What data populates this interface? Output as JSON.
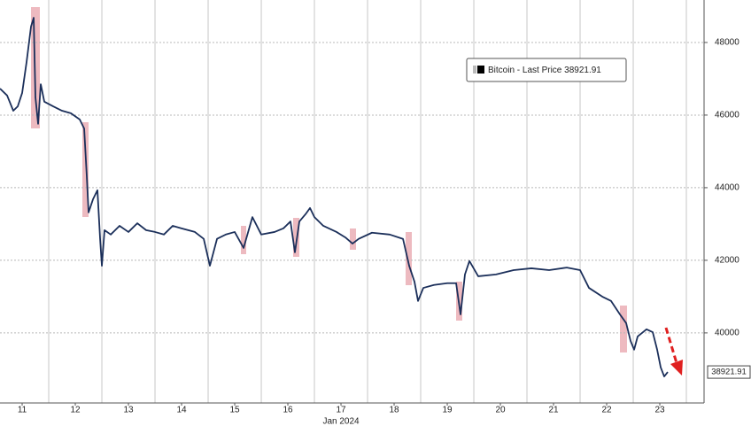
{
  "chart_data": {
    "type": "line",
    "xlabel": "Jan 2024",
    "xlim": [
      11.083,
      24.333
    ],
    "ylim": [
      38070,
      49170
    ],
    "xticks": [
      {
        "value": 11.5,
        "label": "11"
      },
      {
        "value": 12.5,
        "label": "12"
      },
      {
        "value": 13.5,
        "label": "13"
      },
      {
        "value": 14.5,
        "label": "14"
      },
      {
        "value": 15.5,
        "label": "15"
      },
      {
        "value": 16.5,
        "label": "16"
      },
      {
        "value": 17.5,
        "label": "17"
      },
      {
        "value": 18.5,
        "label": "18"
      },
      {
        "value": 19.5,
        "label": "19"
      },
      {
        "value": 20.5,
        "label": "20"
      },
      {
        "value": 21.5,
        "label": "21"
      },
      {
        "value": 22.5,
        "label": "22"
      },
      {
        "value": 23.5,
        "label": "23"
      }
    ],
    "xgrid": [
      12,
      13,
      14,
      15,
      16,
      17,
      18,
      19,
      20,
      21,
      22,
      23,
      24
    ],
    "yticks": [
      40000,
      42000,
      44000,
      46000,
      48000
    ],
    "grid": true,
    "last_price": 38921.91,
    "x": [
      11.083,
      11.217,
      11.333,
      11.417,
      11.5,
      11.583,
      11.667,
      11.717,
      11.75,
      11.8,
      11.85,
      11.917,
      12.083,
      12.25,
      12.417,
      12.583,
      12.667,
      12.717,
      12.75,
      12.833,
      12.917,
      12.967,
      13.0,
      13.05,
      13.167,
      13.333,
      13.5,
      13.667,
      13.833,
      14.0,
      14.167,
      14.333,
      14.5,
      14.75,
      14.917,
      15.033,
      15.167,
      15.333,
      15.5,
      15.667,
      15.833,
      16.0,
      16.25,
      16.417,
      16.55,
      16.633,
      16.717,
      16.833,
      16.917,
      17.0,
      17.167,
      17.417,
      17.583,
      17.717,
      17.833,
      18.083,
      18.417,
      18.667,
      18.783,
      18.883,
      18.95,
      19.05,
      19.25,
      19.5,
      19.667,
      19.75,
      19.833,
      19.917,
      20.083,
      20.417,
      20.75,
      21.083,
      21.417,
      21.75,
      22.0,
      22.167,
      22.417,
      22.583,
      22.75,
      22.867,
      22.95,
      23.017,
      23.083,
      23.25,
      23.367,
      23.45,
      23.517,
      23.583,
      23.65
    ],
    "series": [
      {
        "name": "Bitcoin - Last Price",
        "color": "#1b2f5a",
        "values": [
          46730,
          46540,
          46120,
          46240,
          46610,
          47460,
          48440,
          48680,
          46490,
          45760,
          46850,
          46370,
          46240,
          46120,
          46050,
          45880,
          45630,
          44290,
          43320,
          43680,
          43930,
          42590,
          41850,
          42830,
          42710,
          42950,
          42780,
          43020,
          42830,
          42780,
          42710,
          42950,
          42880,
          42780,
          42590,
          41850,
          42590,
          42710,
          42780,
          42340,
          43190,
          42710,
          42780,
          42880,
          43070,
          42220,
          43070,
          43270,
          43440,
          43190,
          42950,
          42780,
          42630,
          42460,
          42590,
          42760,
          42710,
          42590,
          41850,
          41410,
          40880,
          41240,
          41320,
          41370,
          41370,
          40510,
          41610,
          41980,
          41560,
          41610,
          41730,
          41780,
          41730,
          41800,
          41730,
          41240,
          41000,
          40880,
          40510,
          40270,
          39780,
          39540,
          39900,
          40100,
          40020,
          39540,
          39050,
          38800,
          38921.91
        ]
      }
    ]
  }
}
